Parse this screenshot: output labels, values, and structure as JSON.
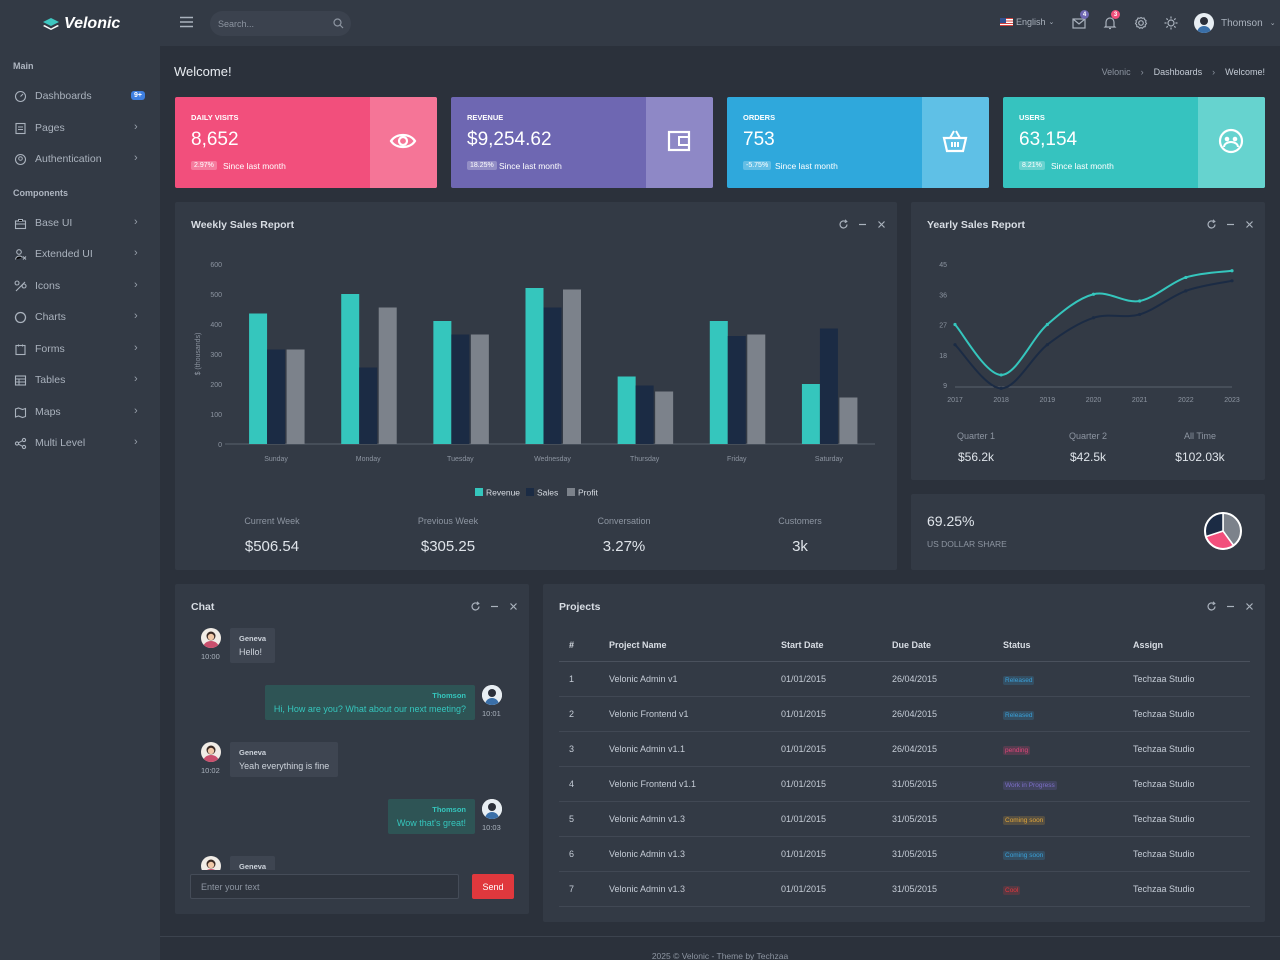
{
  "brand": {
    "name": "Velonic"
  },
  "sidebar": {
    "sections": [
      {
        "label": "Main"
      },
      {
        "label": "Components"
      }
    ],
    "items": [
      {
        "label": "Dashboards",
        "icon": "dashboard-icon",
        "badge": "9+"
      },
      {
        "label": "Pages",
        "icon": "pages-icon"
      },
      {
        "label": "Authentication",
        "icon": "authentication-icon"
      },
      {
        "label": "Base UI",
        "icon": "briefcase-icon"
      },
      {
        "label": "Extended UI",
        "icon": "extended-icon"
      },
      {
        "label": "Icons",
        "icon": "icons-icon"
      },
      {
        "label": "Charts",
        "icon": "chart-icon"
      },
      {
        "label": "Forms",
        "icon": "forms-icon"
      },
      {
        "label": "Tables",
        "icon": "table-icon"
      },
      {
        "label": "Maps",
        "icon": "map-icon"
      },
      {
        "label": "Multi Level",
        "icon": "share-icon"
      }
    ]
  },
  "topbar": {
    "search_placeholder": "Search...",
    "language": "English",
    "mail_badge": "4",
    "notif_badge": "3",
    "user_name": "Thomson"
  },
  "page": {
    "title": "Welcome!",
    "breadcrumb": [
      "Velonic",
      "Dashboards",
      "Welcome!"
    ]
  },
  "stats": [
    {
      "title": "DAILY VISITS",
      "value": "8,652",
      "change": "2.97%",
      "since": "Since last month",
      "icon": "eye-icon",
      "color": "#f24f7c",
      "side": "#f57597"
    },
    {
      "title": "REVENUE",
      "value": "$9,254.62",
      "change": "18.25%",
      "since": "Since last month",
      "icon": "wallet-icon",
      "color": "#6e67b2",
      "side": "#8e88c6"
    },
    {
      "title": "ORDERS",
      "value": "753",
      "change": "-5.75%",
      "since": "Since last month",
      "icon": "basket-icon",
      "color": "#2fa8dc",
      "side": "#5fc0e6"
    },
    {
      "title": "USERS",
      "value": "63,154",
      "change": "8.21%",
      "since": "Since last month",
      "icon": "users-icon",
      "color": "#36c3bf",
      "side": "#66d3cf"
    }
  ],
  "weekly": {
    "title": "Weekly Sales Report",
    "summary": [
      {
        "label": "Current Week",
        "value": "$506.54"
      },
      {
        "label": "Previous Week",
        "value": "$305.25"
      },
      {
        "label": "Conversation",
        "value": "3.27%"
      },
      {
        "label": "Customers",
        "value": "3k"
      }
    ]
  },
  "yearly": {
    "title": "Yearly Sales Report",
    "summary": [
      {
        "label": "Quarter 1",
        "value": "$56.2k"
      },
      {
        "label": "Quarter 2",
        "value": "$42.5k"
      },
      {
        "label": "All Time",
        "value": "$102.03k"
      }
    ]
  },
  "share": {
    "value": "69.25%",
    "label": "US DOLLAR SHARE"
  },
  "chart_data": [
    {
      "type": "bar",
      "categories": [
        "Sunday",
        "Monday",
        "Tuesday",
        "Wednesday",
        "Thursday",
        "Friday",
        "Saturday"
      ],
      "series": [
        {
          "name": "Revenue",
          "values": [
            435,
            500,
            410,
            520,
            225,
            410,
            200
          ],
          "color": "#35c6bd"
        },
        {
          "name": "Sales",
          "values": [
            315,
            255,
            365,
            455,
            195,
            360,
            385
          ],
          "color": "#1b2b44"
        },
        {
          "name": "Profit",
          "values": [
            315,
            455,
            365,
            515,
            175,
            365,
            155
          ],
          "color": "#7c828b"
        }
      ],
      "ylabel": "$ (thousands)",
      "ylim": [
        0,
        600
      ],
      "yticks": [
        0,
        100,
        200,
        300,
        400,
        500,
        600
      ],
      "legend": "bottom"
    },
    {
      "type": "line",
      "x": [
        "2017",
        "2018",
        "2019",
        "2020",
        "2021",
        "2022",
        "2023"
      ],
      "series": [
        {
          "values": [
            27,
            12,
            27,
            36,
            34,
            41,
            43
          ],
          "color": "#35c6bd"
        },
        {
          "values": [
            21,
            8,
            21,
            29,
            30,
            37,
            40
          ],
          "color": "#1b2b44"
        }
      ],
      "ylim": [
        9,
        45
      ],
      "yticks": [
        9,
        18,
        27,
        36,
        45
      ]
    },
    {
      "type": "pie",
      "values": [
        0.4,
        0.3,
        0.3
      ],
      "colors": [
        "#7c828b",
        "#f24f7c",
        "#1b2b44"
      ]
    }
  ],
  "chat": {
    "title": "Chat",
    "messages": [
      {
        "name": "Geneva",
        "text": "Hello!",
        "time": "10:00",
        "side": "left"
      },
      {
        "name": "Thomson",
        "text": "Hi, How are you? What about our next meeting?",
        "time": "10:01",
        "side": "right"
      },
      {
        "name": "Geneva",
        "text": "Yeah everything is fine",
        "time": "10:02",
        "side": "left"
      },
      {
        "name": "Thomson",
        "text": "Wow that's great!",
        "time": "10:03",
        "side": "right"
      },
      {
        "name": "Geneva",
        "text": "",
        "time": "",
        "side": "left"
      }
    ],
    "input_placeholder": "Enter your text",
    "send_label": "Send"
  },
  "projects": {
    "title": "Projects",
    "columns": [
      "#",
      "Project Name",
      "Start Date",
      "Due Date",
      "Status",
      "Assign"
    ],
    "rows": [
      {
        "id": "1",
        "name": "Velonic Admin v1",
        "start": "01/01/2015",
        "due": "26/04/2015",
        "status": "Released",
        "status_color": "#3aa0d8",
        "assign": "Techzaa Studio"
      },
      {
        "id": "2",
        "name": "Velonic Frontend v1",
        "start": "01/01/2015",
        "due": "26/04/2015",
        "status": "Released",
        "status_color": "#3aa0d8",
        "assign": "Techzaa Studio"
      },
      {
        "id": "3",
        "name": "Velonic Admin v1.1",
        "start": "01/01/2015",
        "due": "26/04/2015",
        "status": "pending",
        "status_color": "#e0467a",
        "assign": "Techzaa Studio"
      },
      {
        "id": "4",
        "name": "Velonic Frontend v1.1",
        "start": "01/01/2015",
        "due": "31/05/2015",
        "status": "Work in Progress",
        "status_color": "#7c6fc8",
        "assign": "Techzaa Studio"
      },
      {
        "id": "5",
        "name": "Velonic Admin v1.3",
        "start": "01/01/2015",
        "due": "31/05/2015",
        "status": "Coming soon",
        "status_color": "#e0a53a",
        "assign": "Techzaa Studio"
      },
      {
        "id": "6",
        "name": "Velonic Admin v1.3",
        "start": "01/01/2015",
        "due": "31/05/2015",
        "status": "Coming soon",
        "status_color": "#3aa0d8",
        "assign": "Techzaa Studio"
      },
      {
        "id": "7",
        "name": "Velonic Admin v1.3",
        "start": "01/01/2015",
        "due": "31/05/2015",
        "status": "Cool",
        "status_color": "#e0383d",
        "assign": "Techzaa Studio"
      }
    ]
  },
  "footer": {
    "text": "2025 © Velonic - Theme by Techzaa"
  }
}
